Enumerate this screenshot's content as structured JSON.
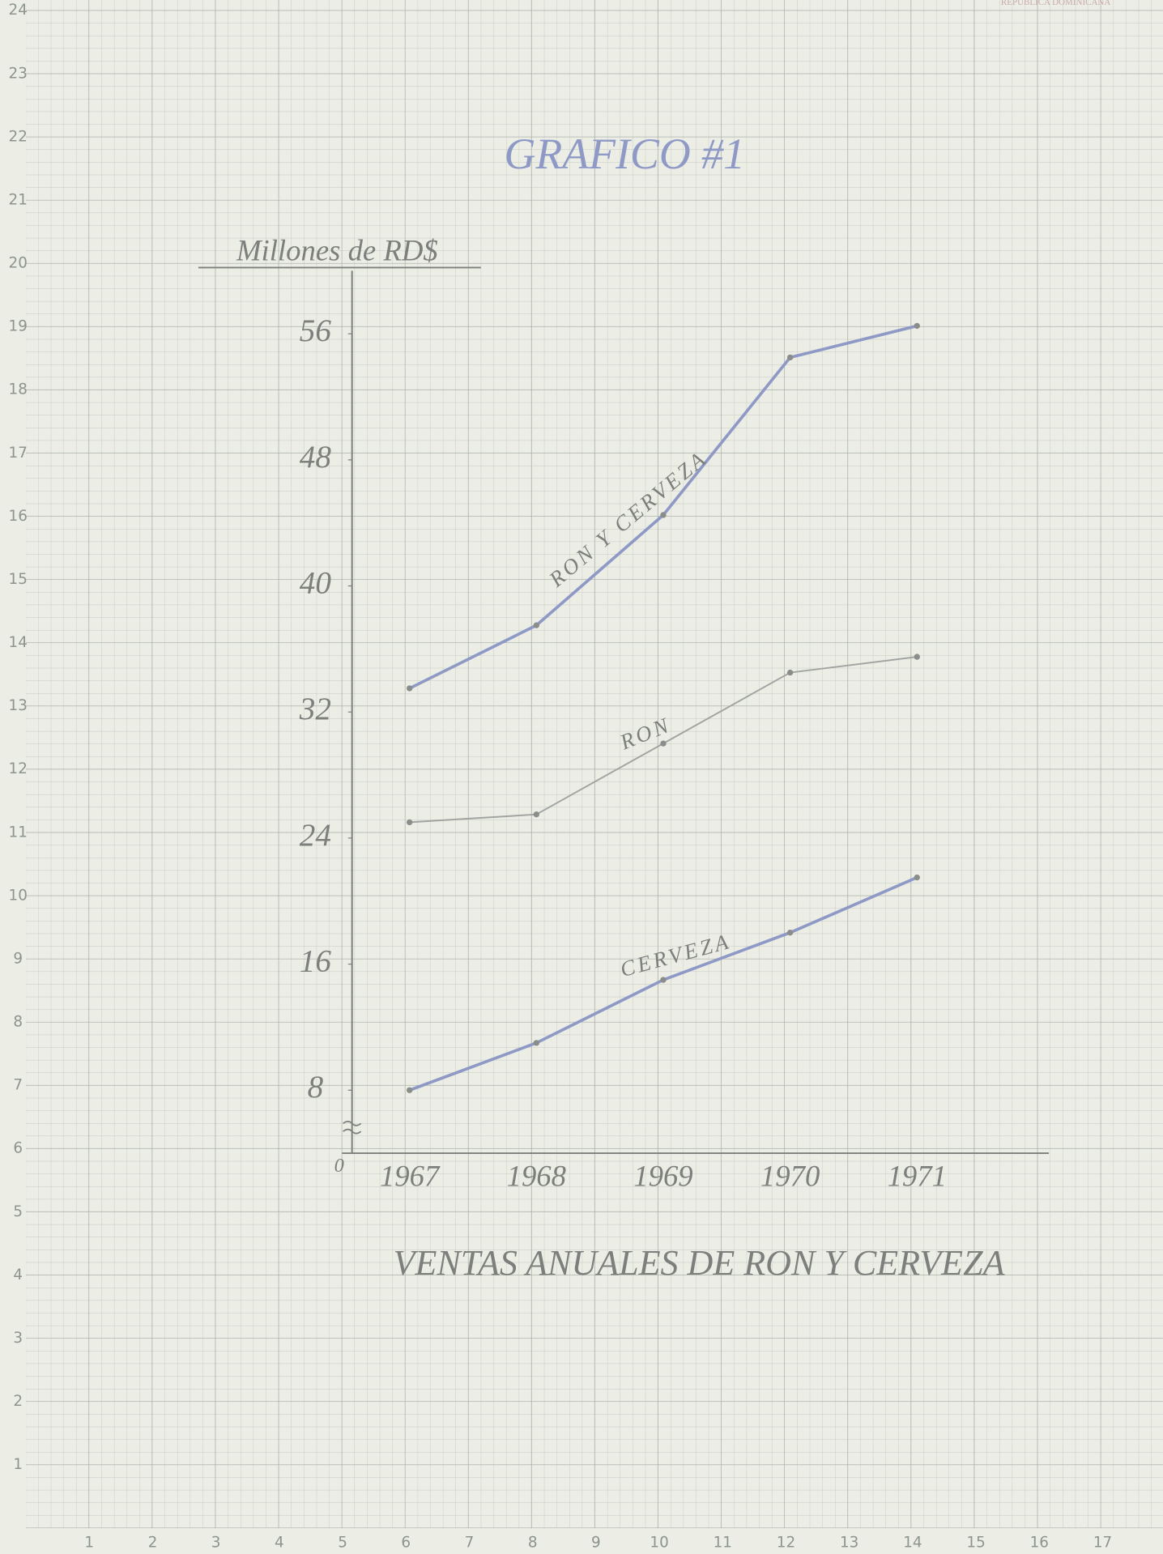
{
  "chart_data": {
    "type": "line",
    "title": "GRAFICO #1",
    "y_label": "Millones de RD$",
    "x_label": "VENTAS ANUALES DE RON Y CERVEZA",
    "categories": [
      "1967",
      "1968",
      "1969",
      "1970",
      "1971"
    ],
    "series": [
      {
        "name": "RON Y CERVEZA",
        "color": "#8e99c6",
        "values": [
          33.5,
          37.5,
          44.5,
          54.5,
          56.5
        ]
      },
      {
        "name": "RON",
        "color": "#a2a4a2",
        "values": [
          25,
          25.5,
          30,
          34.5,
          35.5
        ]
      },
      {
        "name": "CERVEZA",
        "color": "#8e99c6",
        "values": [
          8,
          11,
          15,
          18,
          21.5
        ]
      }
    ],
    "ylim": [
      4,
      60
    ],
    "yticks": [
      8,
      16,
      24,
      32,
      40,
      48,
      56
    ],
    "y_break_label": "0"
  },
  "paper": {
    "row_numbers": [
      "1",
      "2",
      "3",
      "4",
      "5",
      "6",
      "7",
      "8",
      "9",
      "10",
      "11",
      "12",
      "13",
      "14",
      "15",
      "16",
      "17",
      "18",
      "19",
      "20",
      "21",
      "22",
      "23",
      "24"
    ],
    "column_numbers": [
      "1",
      "2",
      "3",
      "4",
      "5",
      "6",
      "7",
      "8",
      "9",
      "10",
      "11",
      "12",
      "13",
      "14",
      "15",
      "16",
      "17"
    ],
    "watermark": "REPÚBLICA DOMINICANA"
  }
}
